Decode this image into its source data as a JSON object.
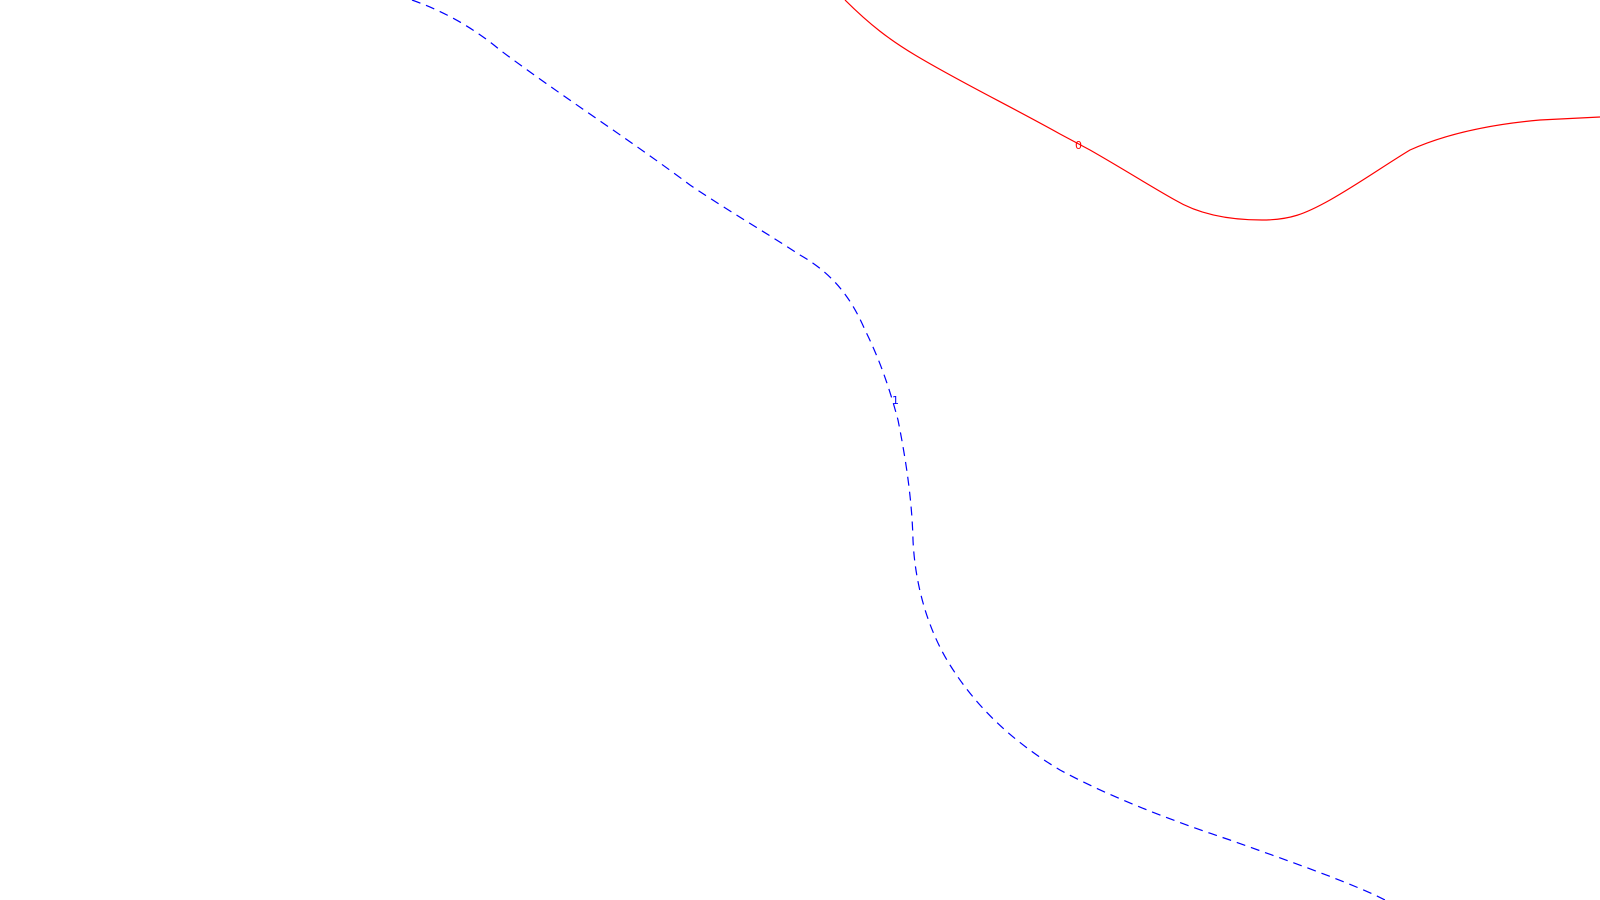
{
  "map": {
    "contours": [
      {
        "label": "0",
        "color": "#ff0000",
        "style": "solid"
      },
      {
        "label": "1",
        "color": "#0000ff",
        "style": "dashed"
      }
    ]
  }
}
